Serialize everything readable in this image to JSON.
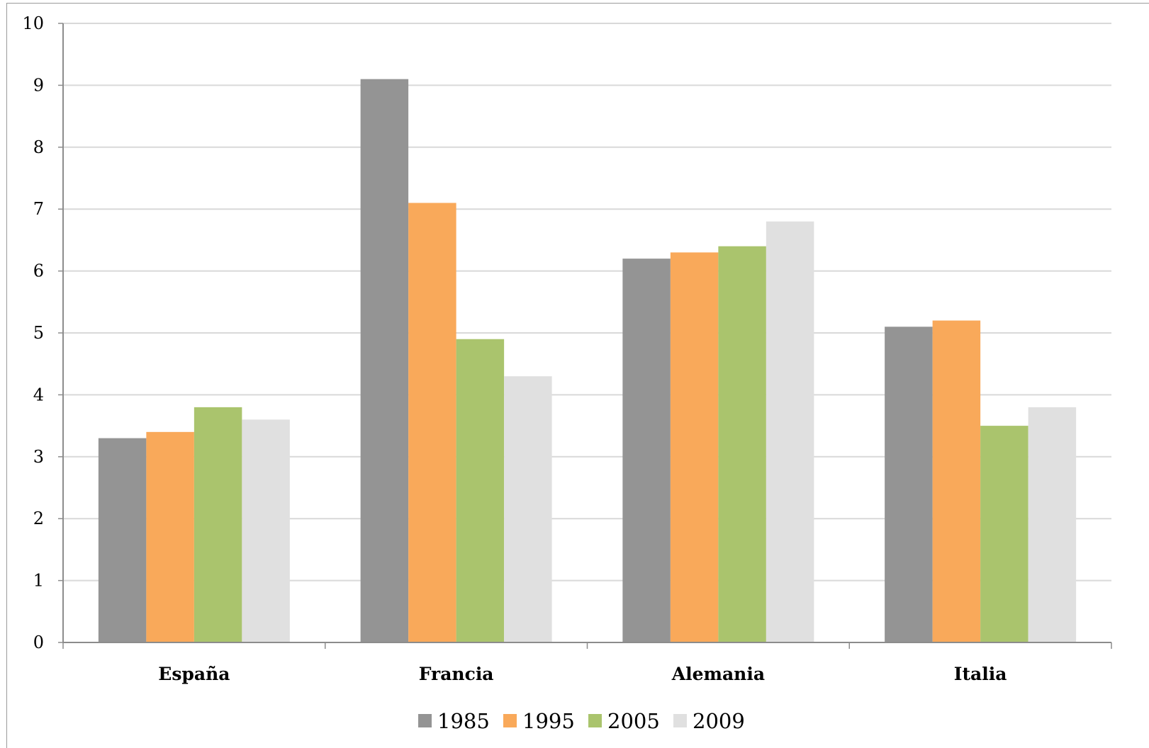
{
  "chart_data": {
    "type": "bar",
    "categories": [
      "España",
      "Francia",
      "Alemania",
      "Italia"
    ],
    "series": [
      {
        "name": "1985",
        "color": "#949494",
        "values": [
          3.3,
          9.1,
          6.2,
          5.1
        ]
      },
      {
        "name": "1995",
        "color": "#f9a95a",
        "values": [
          3.4,
          7.1,
          6.3,
          5.2
        ]
      },
      {
        "name": "2005",
        "color": "#aac46d",
        "values": [
          3.8,
          4.9,
          6.4,
          3.5
        ]
      },
      {
        "name": "2009",
        "color": "#e0e0e0",
        "values": [
          3.6,
          4.3,
          6.8,
          3.8
        ]
      }
    ],
    "title": "",
    "xlabel": "",
    "ylabel": "",
    "ylim": [
      0,
      10
    ],
    "yticks": [
      "0",
      "1",
      "2",
      "3",
      "4",
      "5",
      "6",
      "7",
      "8",
      "9",
      "10"
    ],
    "grid": true,
    "legend_position": "bottom"
  }
}
